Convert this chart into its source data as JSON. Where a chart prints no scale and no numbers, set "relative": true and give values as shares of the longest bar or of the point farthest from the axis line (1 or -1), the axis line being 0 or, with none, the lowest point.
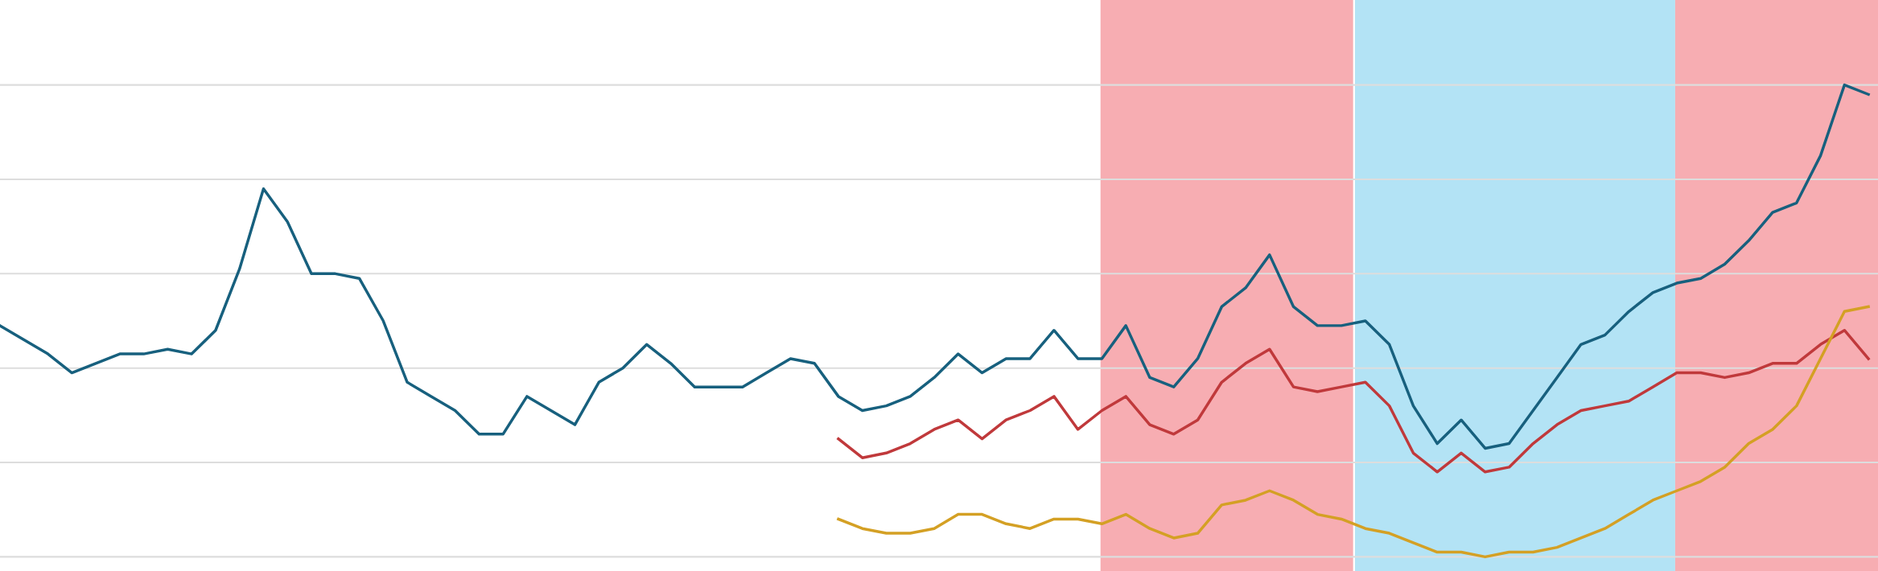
{
  "chart_data": {
    "type": "line",
    "relative": true,
    "grid": "y",
    "legend": false,
    "categories": [
      null,
      null,
      null,
      null,
      null,
      null,
      null,
      null,
      null,
      null,
      null,
      null,
      null,
      null,
      null,
      null,
      null,
      null,
      null,
      null,
      null,
      null,
      null,
      null,
      null,
      null,
      null,
      null,
      null,
      null,
      null,
      null,
      null,
      null,
      null,
      null,
      null,
      null,
      null,
      null,
      null,
      null,
      null,
      null,
      null,
      null,
      null,
      null,
      null,
      null,
      null,
      null,
      null,
      null,
      null,
      null,
      null,
      null,
      null,
      null,
      null,
      null,
      null,
      null,
      null,
      null,
      null,
      null,
      null,
      null,
      null,
      null,
      null,
      null,
      null,
      null,
      null,
      null,
      null
    ],
    "series": [
      {
        "color": "#17607e",
        "values": [
          0.49,
          0.46,
          0.43,
          0.39,
          0.41,
          0.43,
          0.43,
          0.44,
          0.43,
          0.48,
          0.61,
          0.78,
          0.71,
          0.6,
          0.6,
          0.59,
          0.5,
          0.37,
          0.34,
          0.31,
          0.26,
          0.26,
          0.34,
          0.31,
          0.28,
          0.37,
          0.4,
          0.45,
          0.41,
          0.36,
          0.36,
          0.36,
          0.39,
          0.42,
          0.41,
          0.34,
          0.31,
          0.32,
          0.34,
          0.38,
          0.43,
          0.39,
          0.42,
          0.42,
          0.48,
          0.42,
          0.42,
          0.49,
          0.38,
          0.36,
          0.42,
          0.53,
          0.57,
          0.64,
          0.53,
          0.49,
          0.49,
          0.5,
          0.45,
          0.32,
          0.24,
          0.29,
          0.23,
          0.24,
          0.31,
          0.38,
          0.45,
          0.47,
          0.52,
          0.56,
          0.58,
          0.59,
          0.62,
          0.67,
          0.73,
          0.75,
          0.85,
          1.0,
          0.98
        ]
      },
      {
        "color": "#c0393b",
        "values": [
          null,
          null,
          null,
          null,
          null,
          null,
          null,
          null,
          null,
          null,
          null,
          null,
          null,
          null,
          null,
          null,
          null,
          null,
          null,
          null,
          null,
          null,
          null,
          null,
          null,
          null,
          null,
          null,
          null,
          null,
          null,
          null,
          null,
          null,
          null,
          0.25,
          0.21,
          0.22,
          0.24,
          0.27,
          0.29,
          0.25,
          0.29,
          0.31,
          0.34,
          0.27,
          0.31,
          0.34,
          0.28,
          0.26,
          0.29,
          0.37,
          0.41,
          0.44,
          0.36,
          0.35,
          0.36,
          0.37,
          0.32,
          0.22,
          0.18,
          0.22,
          0.18,
          0.19,
          0.24,
          0.28,
          0.31,
          0.32,
          0.33,
          0.36,
          0.39,
          0.39,
          0.38,
          0.39,
          0.41,
          0.41,
          0.45,
          0.48,
          0.42
        ]
      },
      {
        "color": "#d4a024",
        "values": [
          null,
          null,
          null,
          null,
          null,
          null,
          null,
          null,
          null,
          null,
          null,
          null,
          null,
          null,
          null,
          null,
          null,
          null,
          null,
          null,
          null,
          null,
          null,
          null,
          null,
          null,
          null,
          null,
          null,
          null,
          null,
          null,
          null,
          null,
          null,
          0.08,
          0.06,
          0.05,
          0.05,
          0.06,
          0.09,
          0.09,
          0.07,
          0.06,
          0.08,
          0.08,
          0.07,
          0.09,
          0.06,
          0.04,
          0.05,
          0.11,
          0.12,
          0.14,
          0.12,
          0.09,
          0.08,
          0.06,
          0.05,
          0.03,
          0.01,
          0.01,
          0.0,
          0.01,
          0.01,
          0.02,
          0.04,
          0.06,
          0.09,
          0.12,
          0.14,
          0.16,
          0.19,
          0.24,
          0.27,
          0.32,
          0.42,
          0.52,
          0.53
        ]
      }
    ]
  }
}
